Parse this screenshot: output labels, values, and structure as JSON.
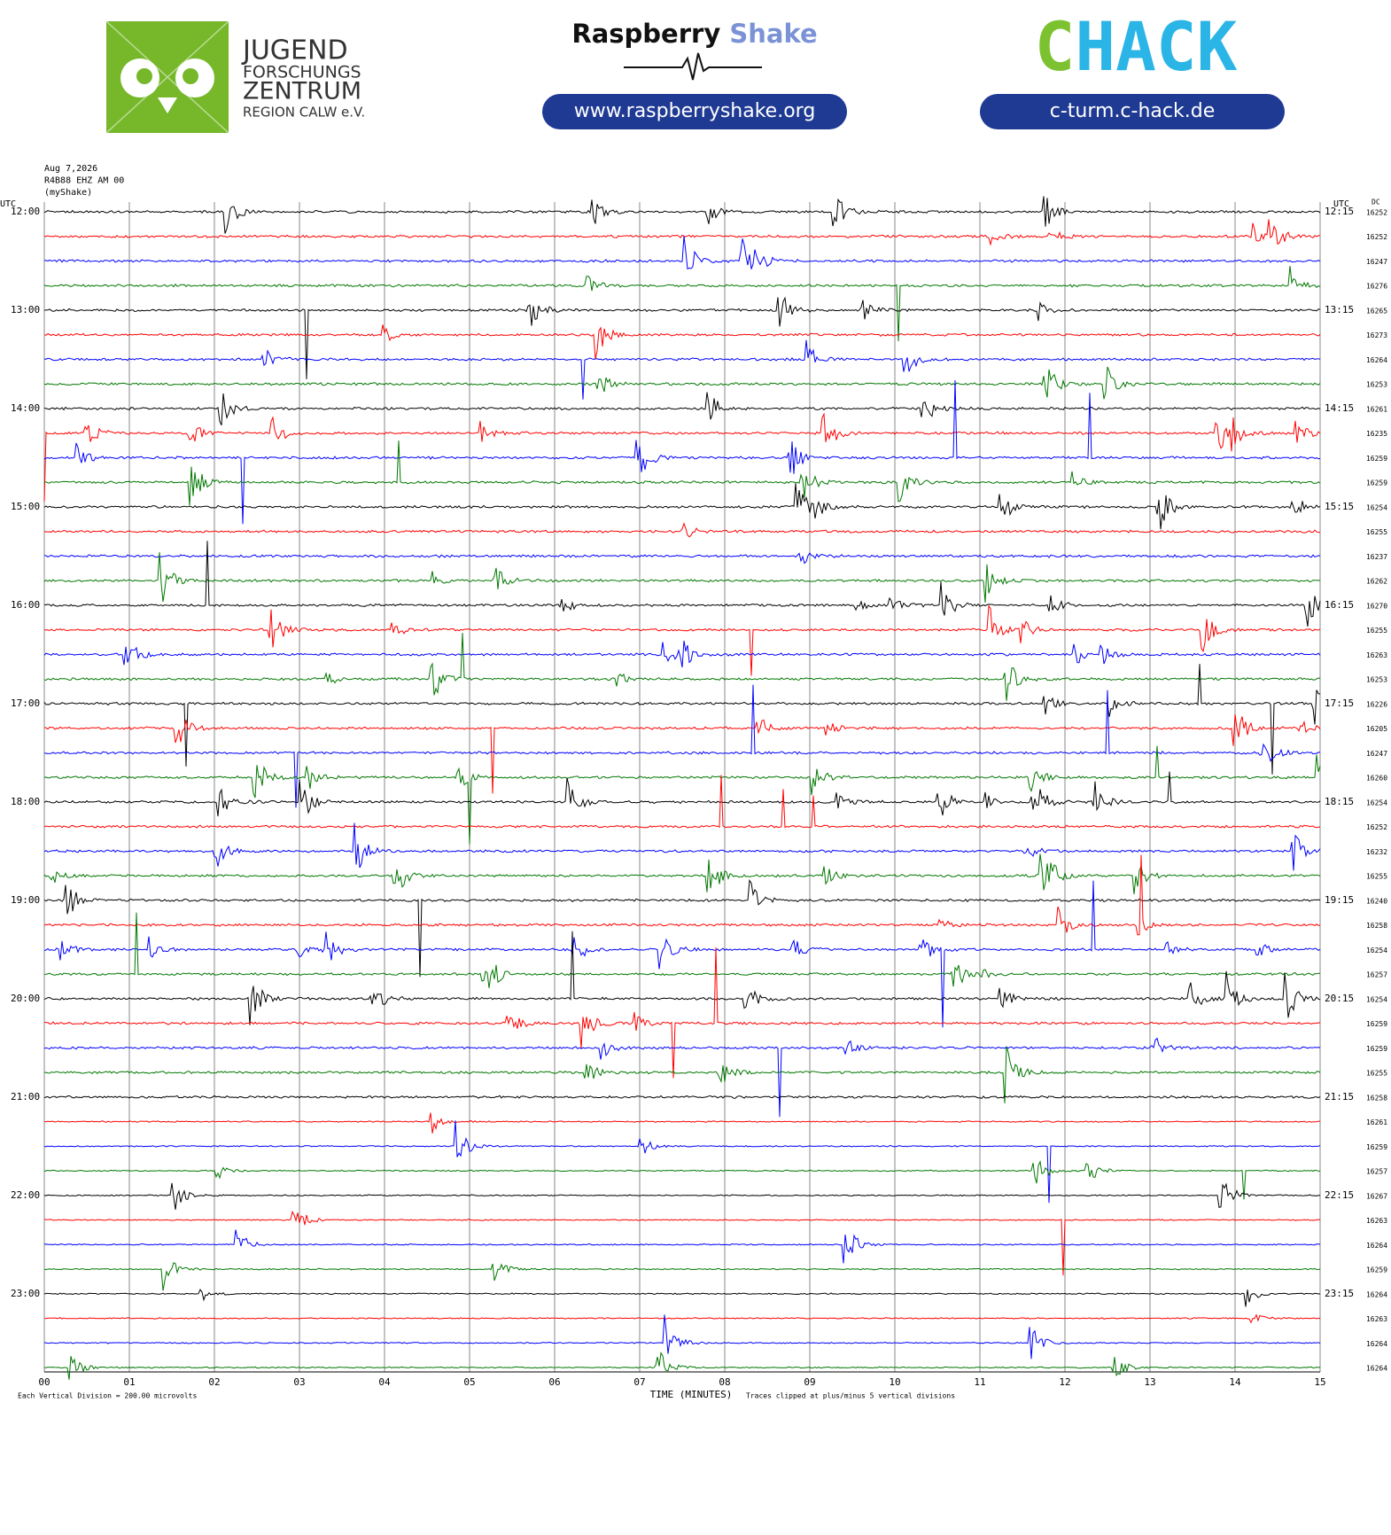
{
  "header": {
    "jfz_lines": [
      "JUGEND",
      "FORSCHUNGS",
      "ZENTRUM",
      "REGION CALW e.V."
    ],
    "rs_word1": "Raspberry",
    "rs_word2": "Shake",
    "rs_url": "www.raspberryshake.org",
    "chack_c": "C",
    "chack_rest": "HACK",
    "chack_url": "c-turm.c-hack.de"
  },
  "chart_data": {
    "type": "helicorder",
    "station": [
      "Aug 7,2026",
      "R4B88 EHZ AM 00",
      "(myShake)"
    ],
    "utc_left": "UTC",
    "utc_right": "UTC",
    "dc_header": "DC",
    "hour_labels": [
      "12:00",
      "13:00",
      "14:00",
      "15:00",
      "16:00",
      "17:00",
      "18:00",
      "19:00",
      "20:00",
      "21:00",
      "22:00",
      "23:00"
    ],
    "hour_labels_right": [
      "12:15",
      "13:15",
      "14:15",
      "15:15",
      "16:15",
      "17:15",
      "18:15",
      "19:15",
      "20:15",
      "21:15",
      "22:15",
      "23:15"
    ],
    "dc_values": [
      16252,
      16252,
      16247,
      16276,
      16265,
      16273,
      16264,
      16253,
      16261,
      16235,
      16259,
      16259,
      16254,
      16255,
      16237,
      16262,
      16270,
      16255,
      16263,
      16253,
      16226,
      16205,
      16247,
      16260,
      16254,
      16252,
      16232,
      16255,
      16240,
      16258,
      16254,
      16257,
      16254,
      16259,
      16259,
      16255,
      16258,
      16261,
      16259,
      16257,
      16267,
      16263,
      16264,
      16259,
      16264,
      16263,
      16264,
      16264
    ],
    "colors": [
      "#000000",
      "#ff0000",
      "#0000ff",
      "#007700"
    ],
    "xlim": [
      0,
      15
    ],
    "xticks": [
      {
        "value": 0,
        "label": "00"
      },
      {
        "value": 1,
        "label": "01"
      },
      {
        "value": 2,
        "label": "02"
      },
      {
        "value": 3,
        "label": "03"
      },
      {
        "value": 4,
        "label": "04"
      },
      {
        "value": 5,
        "label": "05"
      },
      {
        "value": 6,
        "label": "06"
      },
      {
        "value": 7,
        "label": "07"
      },
      {
        "value": 8,
        "label": "08"
      },
      {
        "value": 9,
        "label": "09"
      },
      {
        "value": 10,
        "label": "10"
      },
      {
        "value": 11,
        "label": "11"
      },
      {
        "value": 12,
        "label": "12"
      },
      {
        "value": 13,
        "label": "13"
      },
      {
        "value": 14,
        "label": "14"
      },
      {
        "value": 15,
        "label": "15"
      }
    ],
    "xlabel": "TIME (MINUTES)",
    "scale_note": "Each Vertical Division =  200.00 microvolts",
    "clip_note": "Traces clipped at plus/minus 5 vertical divisions"
  }
}
